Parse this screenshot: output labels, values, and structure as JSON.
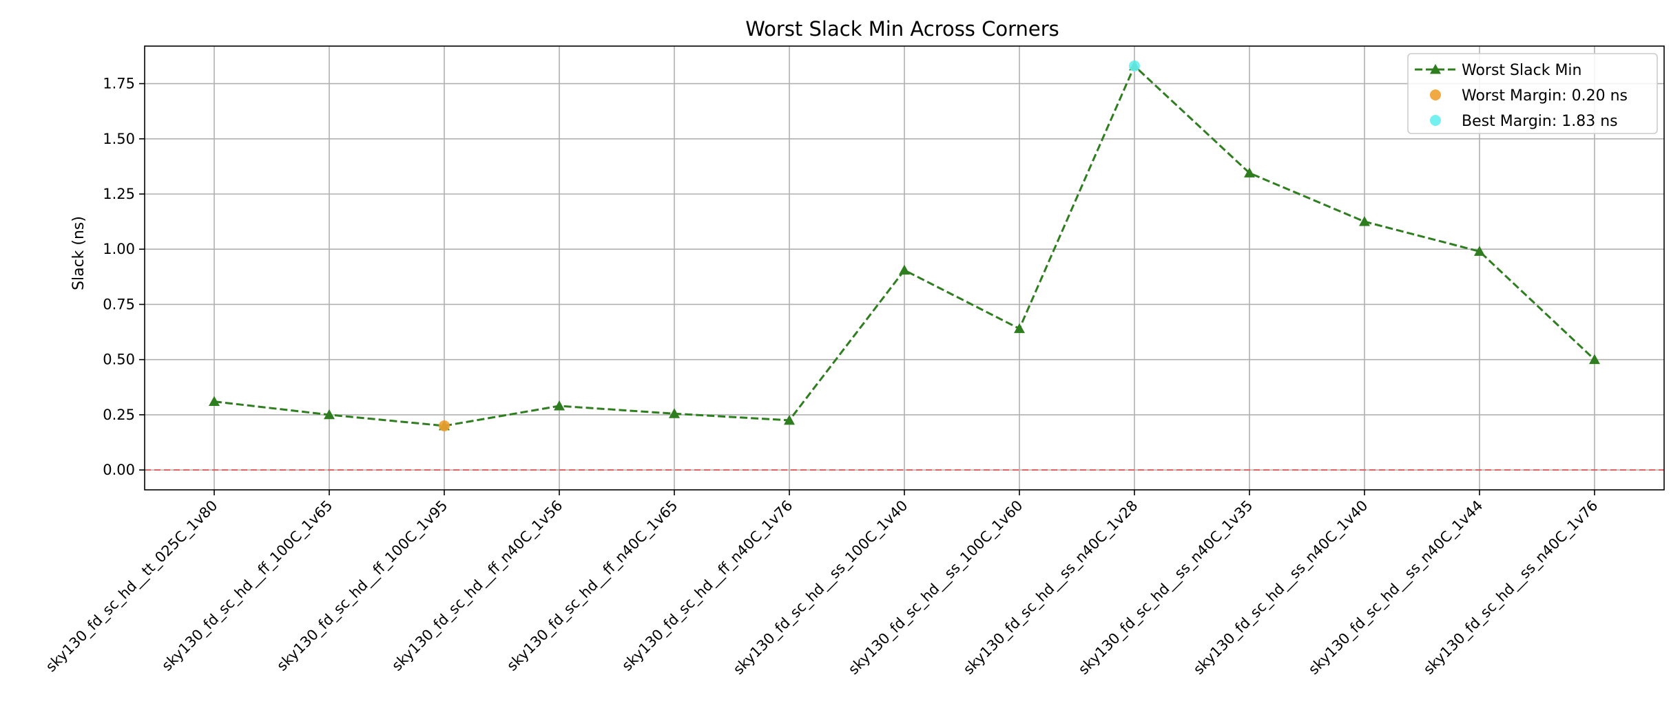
{
  "chart_data": {
    "type": "line",
    "title": "Worst Slack Min Across Corners",
    "xlabel": "",
    "ylabel": "Slack (ns)",
    "ylim": [
      -0.09,
      1.92
    ],
    "yticks": [
      0.0,
      0.25,
      0.5,
      0.75,
      1.0,
      1.25,
      1.5,
      1.75
    ],
    "ytick_labels": [
      "0.00",
      "0.25",
      "0.50",
      "0.75",
      "1.00",
      "1.25",
      "1.50",
      "1.75"
    ],
    "grid": true,
    "legend_position": "top-right",
    "categories": [
      "sky130_fd_sc_hd__tt_025C_1v80",
      "sky130_fd_sc_hd__ff_100C_1v65",
      "sky130_fd_sc_hd__ff_100C_1v95",
      "sky130_fd_sc_hd__ff_n40C_1v56",
      "sky130_fd_sc_hd__ff_n40C_1v65",
      "sky130_fd_sc_hd__ff_n40C_1v76",
      "sky130_fd_sc_hd__ss_100C_1v40",
      "sky130_fd_sc_hd__ss_100C_1v60",
      "sky130_fd_sc_hd__ss_n40C_1v28",
      "sky130_fd_sc_hd__ss_n40C_1v35",
      "sky130_fd_sc_hd__ss_n40C_1v40",
      "sky130_fd_sc_hd__ss_n40C_1v44",
      "sky130_fd_sc_hd__ss_n40C_1v76"
    ],
    "series": [
      {
        "name": "Worst Slack Min",
        "color": "#2e7d1f",
        "line_style": "dashed",
        "marker": "triangle",
        "values": [
          0.31,
          0.25,
          0.2,
          0.29,
          0.255,
          0.225,
          0.905,
          0.64,
          1.83,
          1.345,
          1.125,
          0.99,
          0.5
        ]
      }
    ],
    "highlights": [
      {
        "name": "Worst Margin: 0.20 ns",
        "color": "#f0a030",
        "index": 2,
        "value": 0.2
      },
      {
        "name": "Best Margin: 1.83 ns",
        "color": "#66eef0",
        "index": 8,
        "value": 1.83
      }
    ],
    "reference_line": {
      "y": 0.0,
      "color": "#e05050",
      "line_style": "dashed"
    }
  }
}
